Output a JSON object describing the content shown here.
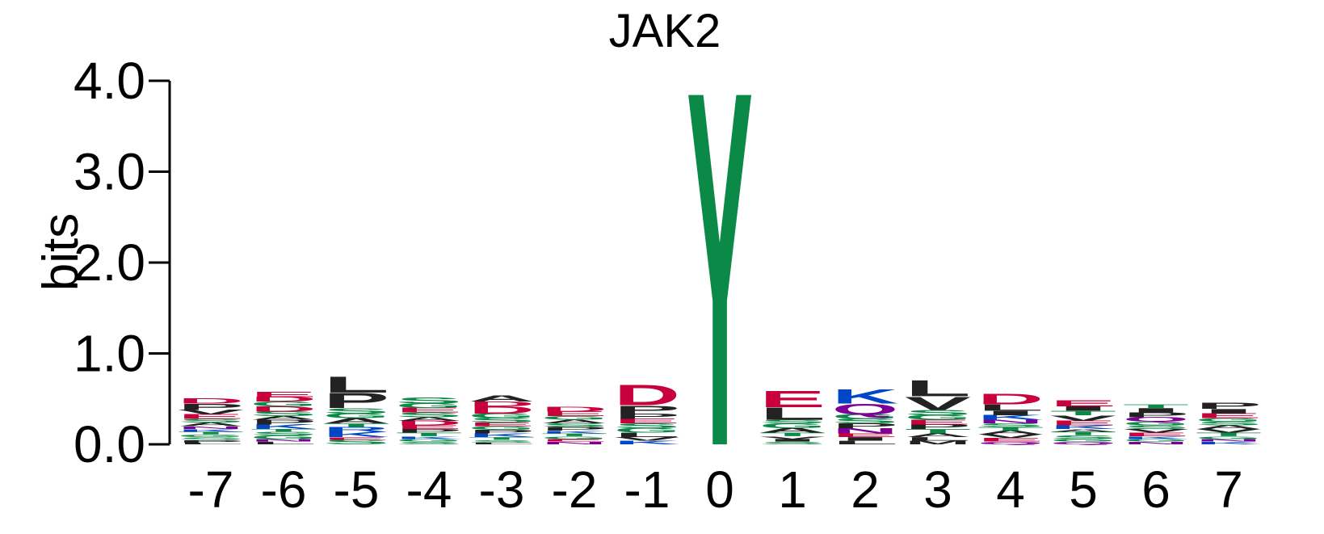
{
  "chart_data": {
    "type": "sequence-logo",
    "title": "JAK2",
    "ylabel": "bits",
    "ylim": [
      0,
      4
    ],
    "yticks": [
      "0.0",
      "1.0",
      "2.0",
      "3.0",
      "4.0"
    ],
    "positions": [
      "-7",
      "-6",
      "-5",
      "-4",
      "-3",
      "-2",
      "-1",
      "0",
      "1",
      "2",
      "3",
      "4",
      "5",
      "6",
      "7"
    ],
    "colors": {
      "D": "#c8003c",
      "E": "#c8003c",
      "K": "#0047c8",
      "R": "#0047c8",
      "H": "#0047c8",
      "S": "#0a8a46",
      "G": "#0a8a46",
      "T": "#0a8a46",
      "Y": "#0a8a46",
      "C": "#0a8a46",
      "Q": "#7d0096",
      "N": "#7d0096",
      "P": "#222222",
      "L": "#222222",
      "V": "#222222",
      "A": "#222222",
      "I": "#222222",
      "M": "#222222",
      "F": "#222222",
      "W": "#222222"
    },
    "columns": [
      {
        "position": "-7",
        "letters": [
          [
            "L",
            0.02
          ],
          [
            "P",
            0.03
          ],
          [
            "S",
            0.03
          ],
          [
            "G",
            0.03
          ],
          [
            "T",
            0.03
          ],
          [
            "K",
            0.03
          ],
          [
            "N",
            0.03
          ],
          [
            "A",
            0.04
          ],
          [
            "S",
            0.04
          ],
          [
            "E",
            0.05
          ],
          [
            "V",
            0.05
          ],
          [
            "P",
            0.07
          ],
          [
            "D",
            0.06
          ]
        ]
      },
      {
        "position": "-6",
        "letters": [
          [
            "L",
            0.03
          ],
          [
            "N",
            0.03
          ],
          [
            "G",
            0.04
          ],
          [
            "S",
            0.04
          ],
          [
            "T",
            0.03
          ],
          [
            "K",
            0.05
          ],
          [
            "P",
            0.05
          ],
          [
            "A",
            0.04
          ],
          [
            "S",
            0.05
          ],
          [
            "D",
            0.06
          ],
          [
            "G",
            0.05
          ],
          [
            "D",
            0.05
          ],
          [
            "E",
            0.06
          ]
        ]
      },
      {
        "position": "-5",
        "letters": [
          [
            "S",
            0.05
          ],
          [
            "E",
            0.03
          ],
          [
            "K",
            0.06
          ],
          [
            "R",
            0.05
          ],
          [
            "T",
            0.04
          ],
          [
            "A",
            0.06
          ],
          [
            "G",
            0.05
          ],
          [
            "S",
            0.06
          ],
          [
            "P",
            0.17
          ],
          [
            "L",
            0.18
          ]
        ]
      },
      {
        "position": "-4",
        "letters": [
          [
            "S",
            0.03
          ],
          [
            "G",
            0.03
          ],
          [
            "K",
            0.03
          ],
          [
            "T",
            0.04
          ],
          [
            "P",
            0.04
          ],
          [
            "E",
            0.04
          ],
          [
            "D",
            0.05
          ],
          [
            "A",
            0.04
          ],
          [
            "S",
            0.05
          ],
          [
            "E",
            0.05
          ],
          [
            "G",
            0.05
          ],
          [
            "S",
            0.07
          ]
        ]
      },
      {
        "position": "-3",
        "letters": [
          [
            "L",
            0.02
          ],
          [
            "S",
            0.03
          ],
          [
            "T",
            0.03
          ],
          [
            "K",
            0.04
          ],
          [
            "P",
            0.04
          ],
          [
            "G",
            0.04
          ],
          [
            "E",
            0.04
          ],
          [
            "S",
            0.05
          ],
          [
            "G",
            0.05
          ],
          [
            "D",
            0.08
          ],
          [
            "D",
            0.05
          ],
          [
            "A",
            0.07
          ]
        ]
      },
      {
        "position": "-2",
        "letters": [
          [
            "N",
            0.03
          ],
          [
            "E",
            0.03
          ],
          [
            "G",
            0.03
          ],
          [
            "T",
            0.03
          ],
          [
            "K",
            0.03
          ],
          [
            "P",
            0.04
          ],
          [
            "S",
            0.04
          ],
          [
            "A",
            0.04
          ],
          [
            "G",
            0.04
          ],
          [
            "E",
            0.05
          ],
          [
            "D",
            0.05
          ]
        ]
      },
      {
        "position": "-1",
        "letters": [
          [
            "K",
            0.04
          ],
          [
            "V",
            0.04
          ],
          [
            "L",
            0.05
          ],
          [
            "G",
            0.05
          ],
          [
            "S",
            0.05
          ],
          [
            "E",
            0.05
          ],
          [
            "P",
            0.06
          ],
          [
            "P",
            0.09
          ],
          [
            "D",
            0.23
          ]
        ]
      },
      {
        "position": "0",
        "letters": [
          [
            "Y",
            4.0
          ]
        ]
      },
      {
        "position": "1",
        "letters": [
          [
            "S",
            0.03
          ],
          [
            "I",
            0.03
          ],
          [
            "V",
            0.03
          ],
          [
            "T",
            0.04
          ],
          [
            "A",
            0.05
          ],
          [
            "G",
            0.05
          ],
          [
            "S",
            0.04
          ],
          [
            "L",
            0.14
          ],
          [
            "E",
            0.18
          ]
        ]
      },
      {
        "position": "2",
        "letters": [
          [
            "L",
            0.04
          ],
          [
            "I",
            0.04
          ],
          [
            "E",
            0.04
          ],
          [
            "N",
            0.06
          ],
          [
            "P",
            0.05
          ],
          [
            "S",
            0.05
          ],
          [
            "G",
            0.05
          ],
          [
            "Q",
            0.12
          ],
          [
            "K",
            0.16
          ]
        ]
      },
      {
        "position": "3",
        "letters": [
          [
            "M",
            0.04
          ],
          [
            "L",
            0.04
          ],
          [
            "A",
            0.04
          ],
          [
            "T",
            0.05
          ],
          [
            "P",
            0.05
          ],
          [
            "E",
            0.05
          ],
          [
            "G",
            0.05
          ],
          [
            "S",
            0.06
          ],
          [
            "V",
            0.15
          ],
          [
            "L",
            0.18
          ]
        ]
      },
      {
        "position": "4",
        "letters": [
          [
            "Q",
            0.03
          ],
          [
            "E",
            0.04
          ],
          [
            "V",
            0.04
          ],
          [
            "A",
            0.04
          ],
          [
            "T",
            0.04
          ],
          [
            "S",
            0.04
          ],
          [
            "N",
            0.04
          ],
          [
            "K",
            0.05
          ],
          [
            "I",
            0.05
          ],
          [
            "L",
            0.07
          ],
          [
            "D",
            0.12
          ]
        ]
      },
      {
        "position": "5",
        "letters": [
          [
            "Q",
            0.03
          ],
          [
            "G",
            0.03
          ],
          [
            "S",
            0.04
          ],
          [
            "T",
            0.04
          ],
          [
            "A",
            0.03
          ],
          [
            "K",
            0.04
          ],
          [
            "E",
            0.05
          ],
          [
            "V",
            0.06
          ],
          [
            "T",
            0.05
          ],
          [
            "I",
            0.05
          ],
          [
            "E",
            0.07
          ]
        ]
      },
      {
        "position": "6",
        "letters": [
          [
            "N",
            0.03
          ],
          [
            "G",
            0.03
          ],
          [
            "K",
            0.03
          ],
          [
            "E",
            0.04
          ],
          [
            "V",
            0.04
          ],
          [
            "S",
            0.04
          ],
          [
            "G",
            0.04
          ],
          [
            "Q",
            0.05
          ],
          [
            "P",
            0.05
          ],
          [
            "I",
            0.05
          ],
          [
            "T",
            0.04
          ]
        ]
      },
      {
        "position": "7",
        "letters": [
          [
            "K",
            0.03
          ],
          [
            "N",
            0.03
          ],
          [
            "G",
            0.03
          ],
          [
            "T",
            0.04
          ],
          [
            "V",
            0.04
          ],
          [
            "A",
            0.04
          ],
          [
            "S",
            0.04
          ],
          [
            "G",
            0.04
          ],
          [
            "E",
            0.05
          ],
          [
            "I",
            0.05
          ],
          [
            "P",
            0.07
          ]
        ]
      }
    ]
  }
}
